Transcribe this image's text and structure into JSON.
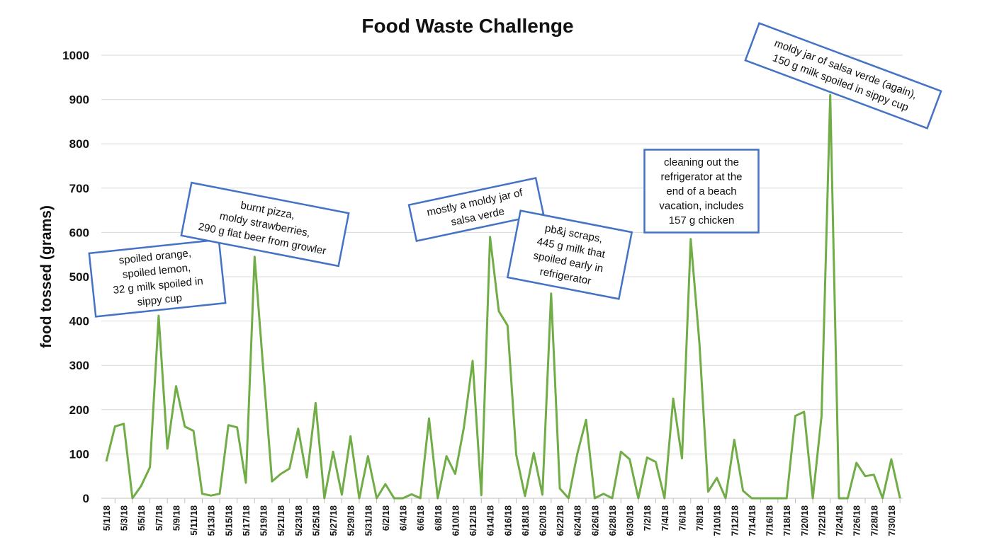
{
  "chart_data": {
    "type": "line",
    "title": "Food Waste Challenge",
    "xlabel": "",
    "ylabel": "food tossed (grams)",
    "ylim": [
      0,
      1000
    ],
    "yticks": [
      0,
      100,
      200,
      300,
      400,
      500,
      600,
      700,
      800,
      900,
      1000
    ],
    "grid": true,
    "line_color": "#70ad47",
    "annotation_border_color": "#4472c4",
    "x": [
      "5/1/18",
      "5/2/18",
      "5/3/18",
      "5/4/18",
      "5/5/18",
      "5/6/18",
      "5/7/18",
      "5/8/18",
      "5/9/18",
      "5/10/18",
      "5/11/18",
      "5/12/18",
      "5/13/18",
      "5/14/18",
      "5/15/18",
      "5/16/18",
      "5/17/18",
      "5/18/18",
      "5/19/18",
      "5/20/18",
      "5/21/18",
      "5/22/18",
      "5/23/18",
      "5/24/18",
      "5/25/18",
      "5/26/18",
      "5/27/18",
      "5/28/18",
      "5/29/18",
      "5/30/18",
      "5/31/18",
      "6/1/18",
      "6/2/18",
      "6/3/18",
      "6/4/18",
      "6/5/18",
      "6/6/18",
      "6/7/18",
      "6/8/18",
      "6/9/18",
      "6/10/18",
      "6/11/18",
      "6/12/18",
      "6/13/18",
      "6/14/18",
      "6/15/18",
      "6/16/18",
      "6/17/18",
      "6/18/18",
      "6/19/18",
      "6/20/18",
      "6/21/18",
      "6/22/18",
      "6/23/18",
      "6/24/18",
      "6/25/18",
      "6/26/18",
      "6/27/18",
      "6/28/18",
      "6/29/18",
      "6/30/18",
      "7/1/18",
      "7/2/18",
      "7/3/18",
      "7/4/18",
      "7/5/18",
      "7/6/18",
      "7/7/18",
      "7/8/18",
      "7/9/18",
      "7/10/18",
      "7/11/18",
      "7/12/18",
      "7/13/18",
      "7/14/18",
      "7/15/18",
      "7/16/18",
      "7/17/18",
      "7/18/18",
      "7/19/18",
      "7/20/18",
      "7/21/18",
      "7/22/18",
      "7/23/18",
      "7/24/18",
      "7/25/18",
      "7/26/18",
      "7/27/18",
      "7/28/18",
      "7/29/18",
      "7/30/18",
      "7/31/18"
    ],
    "values": [
      83,
      162,
      168,
      0,
      28,
      70,
      412,
      112,
      253,
      162,
      152,
      10,
      6,
      10,
      165,
      160,
      35,
      545,
      290,
      38,
      55,
      67,
      157,
      47,
      215,
      0,
      105,
      8,
      140,
      0,
      95,
      0,
      32,
      0,
      0,
      9,
      0,
      180,
      0,
      95,
      55,
      160,
      310,
      7,
      590,
      422,
      390,
      98,
      5,
      102,
      8,
      462,
      22,
      0,
      100,
      177,
      0,
      10,
      0,
      105,
      88,
      0,
      92,
      82,
      0,
      225,
      90,
      585,
      350,
      15,
      46,
      0,
      132,
      17,
      0,
      0,
      0,
      0,
      0,
      186,
      195,
      0,
      185,
      910,
      0,
      0,
      80,
      50,
      53,
      0,
      88,
      0
    ],
    "xtick_labels": [
      "5/1/18",
      "5/3/18",
      "5/5/18",
      "5/7/18",
      "5/9/18",
      "5/11/18",
      "5/13/18",
      "5/15/18",
      "5/17/18",
      "5/19/18",
      "5/21/18",
      "5/23/18",
      "5/25/18",
      "5/27/18",
      "5/29/18",
      "5/31/18",
      "6/2/18",
      "6/4/18",
      "6/6/18",
      "6/8/18",
      "6/10/18",
      "6/12/18",
      "6/14/18",
      "6/16/18",
      "6/18/18",
      "6/20/18",
      "6/22/18",
      "6/24/18",
      "6/26/18",
      "6/28/18",
      "6/30/18",
      "7/2/18",
      "7/4/18",
      "7/6/18",
      "7/8/18",
      "7/10/18",
      "7/12/18",
      "7/14/18",
      "7/16/18",
      "7/18/18",
      "7/20/18",
      "7/22/18",
      "7/24/18",
      "7/26/18",
      "7/28/18",
      "7/30/18"
    ],
    "annotations": [
      {
        "lines": [
          "spoiled orange,",
          "spoiled lemon,",
          "32 g milk spoiled in",
          "sippy cup"
        ]
      },
      {
        "lines": [
          "burnt pizza,",
          "moldy strawberries,",
          "290 g flat beer from growler"
        ]
      },
      {
        "lines": [
          "mostly a moldy jar of",
          "salsa verde"
        ]
      },
      {
        "lines": [
          "pb&j scraps,",
          "445 g milk that",
          "spoiled early in",
          "refrigerator"
        ]
      },
      {
        "lines": [
          "cleaning out the",
          "refrigerator at the",
          "end of a beach",
          "vacation, includes",
          "157 g chicken"
        ]
      },
      {
        "lines": [
          "moldy jar of salsa verde (again),",
          "150 g milk spoiled in sippy cup"
        ]
      }
    ]
  }
}
